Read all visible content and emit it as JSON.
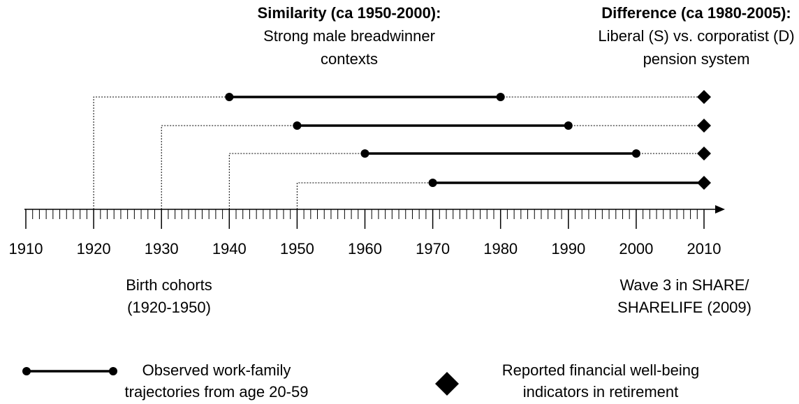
{
  "annotations": {
    "similarity": {
      "title": "Similarity (ca 1950-2000):",
      "lines": [
        "Strong male breadwinner",
        "contexts"
      ]
    },
    "difference": {
      "title": "Difference (ca 1980-2005):",
      "lines": [
        "Liberal (S) vs. corporatist (D)",
        "pension system"
      ]
    }
  },
  "axis": {
    "xlim": [
      1910,
      2010
    ],
    "ticks": [
      1910,
      1920,
      1930,
      1940,
      1950,
      1960,
      1970,
      1980,
      1990,
      2000,
      2010
    ]
  },
  "cohorts": [
    {
      "birth": 1920,
      "start": 1940,
      "end": 1980,
      "survey": 2010
    },
    {
      "birth": 1930,
      "start": 1950,
      "end": 1990,
      "survey": 2010
    },
    {
      "birth": 1940,
      "start": 1960,
      "end": 2000,
      "survey": 2010
    },
    {
      "birth": 1950,
      "start": 1970,
      "end": 2010,
      "survey": 2010
    }
  ],
  "labels": {
    "birth": [
      "Birth cohorts",
      "(1920-1950)"
    ],
    "wave": [
      "Wave 3 in SHARE/",
      "SHARELIFE (2009)"
    ]
  },
  "legend": {
    "trajectory": [
      "Observed work-family",
      "trajectories from age 20-59"
    ],
    "indicator": [
      "Reported financial well-being",
      "indicators in retirement"
    ]
  }
}
